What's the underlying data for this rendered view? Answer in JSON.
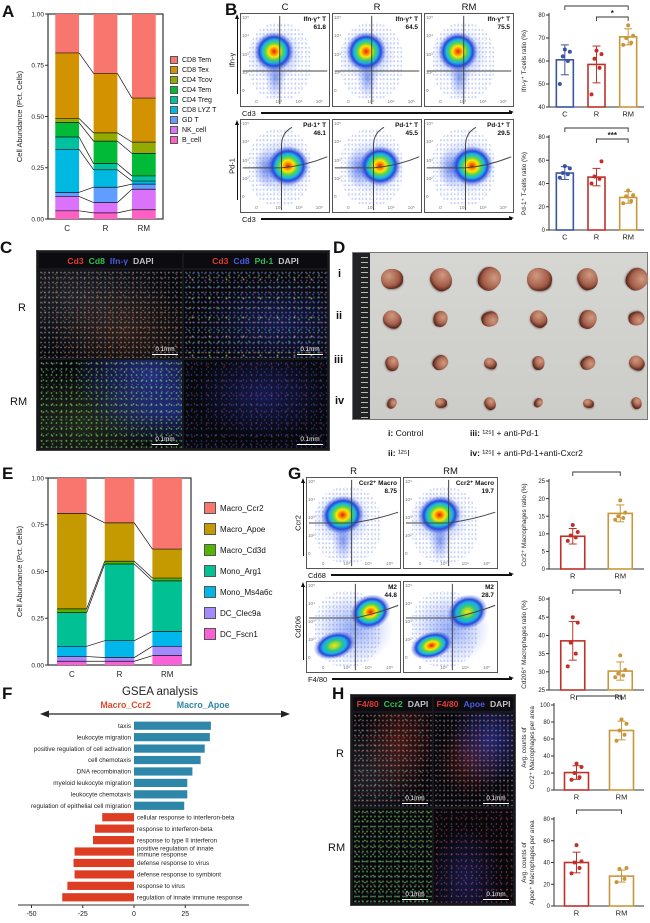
{
  "panelA": {
    "letter": "A"
  },
  "panelB": {
    "letter": "B"
  },
  "panelC": {
    "letter": "C",
    "row_labels": [
      "R",
      "RM"
    ],
    "scalebar": "0.1mm",
    "column_headers": [
      [
        {
          "text": "Cd3",
          "color": "#e23a30"
        },
        {
          "text": "Cd8",
          "color": "#2fbf4f"
        },
        {
          "text": "Ifn-γ",
          "color": "#4b5be0"
        },
        {
          "text": "DAPI",
          "color": "#c2c2c6"
        }
      ],
      [
        {
          "text": "Cd3",
          "color": "#e23a30"
        },
        {
          "text": "Cd8",
          "color": "#4b5be0"
        },
        {
          "text": "Pd-1",
          "color": "#2fbf4f"
        },
        {
          "text": "DAPI",
          "color": "#c2c2c6"
        }
      ]
    ]
  },
  "panelD": {
    "letter": "D",
    "row_labels": [
      "i",
      "ii",
      "iii",
      "iv"
    ],
    "captions": [
      {
        "key": "i:",
        "text": " Control"
      },
      {
        "key": "ii:",
        "text": " ¹²⁵I"
      },
      {
        "key": "iii:",
        "text": " ¹²⁵I + anti-Pd-1"
      },
      {
        "key": "iv:",
        "text": " ¹²⁵I + anti-Pd-1+anti-Cxcr2"
      }
    ]
  },
  "panelE": {
    "letter": "E"
  },
  "panelF": {
    "letter": "F",
    "title": "GSEA analysis",
    "left_header": "Macro_Ccr2",
    "right_header": "Macro_Apoe",
    "left_color": "#E04A2A",
    "right_color": "#2E86A8"
  },
  "panelG": {
    "letter": "G"
  },
  "panelH": {
    "letter": "H",
    "row_labels": [
      "R",
      "RM"
    ],
    "scalebar": "0.1mm",
    "column_headers": [
      [
        {
          "text": "F4/80",
          "color": "#e23a30"
        },
        {
          "text": "Ccr2",
          "color": "#2fbf4f"
        },
        {
          "text": "DAPI",
          "color": "#c2c2c6"
        }
      ],
      [
        {
          "text": "F4/80",
          "color": "#e23a30"
        },
        {
          "text": "Apoe",
          "color": "#4b5be0"
        },
        {
          "text": "DAPI",
          "color": "#c2c2c6"
        }
      ]
    ]
  },
  "flow": {
    "ticks_y": [
      "10⁵",
      "10⁴",
      "10³",
      "10²",
      "0"
    ],
    "ticks_x": [
      "0",
      "10³",
      "10⁴",
      "10⁵"
    ],
    "B": {
      "columns": [
        "C",
        "R",
        "RM"
      ],
      "rows": [
        {
          "ylabel": "Ifn-γ",
          "xlabel": "Cd3",
          "gate": "Ifn-γ⁺ T",
          "values": [
            "61.8",
            "64.5",
            "75.5"
          ],
          "variant": "single"
        },
        {
          "ylabel": "Pd-1",
          "xlabel": "Cd3",
          "gate": "Pd-1⁺ T",
          "values": [
            "46.1",
            "45.5",
            "29.5"
          ],
          "variant": "curve"
        }
      ]
    },
    "G": {
      "columns": [
        "R",
        "RM"
      ],
      "rows": [
        {
          "ylabel": "Ccr2",
          "xlabel": "Cd68",
          "gate": "Ccr2⁺ Macro",
          "values": [
            "8.75",
            "19.7"
          ],
          "variant": "single"
        },
        {
          "ylabel": "Cd206",
          "xlabel": "F4/80",
          "gate": "M2",
          "values": [
            "44.8",
            "28.7"
          ],
          "variant": "diag",
          "hot": [
            "tr",
            "bl"
          ]
        }
      ]
    }
  },
  "chart_data": [
    {
      "id": "A",
      "type": "bar",
      "variant": "stacked",
      "ylabel": "Cell Abundance (Pct. Cells)",
      "categories": [
        "C",
        "R",
        "RM"
      ],
      "yticks": [
        "0.00",
        "0.25",
        "0.50",
        "0.75",
        "1.00"
      ],
      "series": [
        {
          "name": "B_cell",
          "color": "#FF61C3",
          "values": [
            0.04,
            0.03,
            0.045
          ]
        },
        {
          "name": "NK_cell",
          "color": "#DB72FB",
          "values": [
            0.07,
            0.05,
            0.1
          ]
        },
        {
          "name": "GD T",
          "color": "#619CFF",
          "values": [
            0.02,
            0.075,
            0.025
          ]
        },
        {
          "name": "CD8 LYZ T",
          "color": "#00B9E3",
          "values": [
            0.21,
            0.085,
            0.015
          ]
        },
        {
          "name": "CD4 Treg",
          "color": "#00C19F",
          "values": [
            0.06,
            0.03,
            0.025
          ]
        },
        {
          "name": "CD4 Tem",
          "color": "#00BA38",
          "values": [
            0.07,
            0.11,
            0.11
          ]
        },
        {
          "name": "CD4 Tcov",
          "color": "#93AA00",
          "values": [
            0.02,
            0.04,
            0.055
          ]
        },
        {
          "name": "CD8 Tex",
          "color": "#D39200",
          "values": [
            0.32,
            0.29,
            0.215
          ]
        },
        {
          "name": "CD8 Tem",
          "color": "#F8766D",
          "values": [
            0.19,
            0.29,
            0.41
          ]
        }
      ]
    },
    {
      "id": "B1",
      "type": "bar",
      "ylabel": "Ifn-γ⁺ T-cells ratio (%)",
      "categories": [
        "C",
        "R",
        "RM"
      ],
      "values": [
        60.5,
        58.5,
        70.5
      ],
      "err": [
        6.5,
        8,
        3.5
      ],
      "points": [
        [
          50,
          60,
          62,
          64,
          65
        ],
        [
          45.5,
          57,
          61,
          63,
          64.5
        ],
        [
          67,
          68,
          70,
          71,
          75.5
        ]
      ],
      "colors": [
        "#3A53A4",
        "#C03028",
        "#C9973B"
      ],
      "ylim": [
        40,
        80
      ],
      "yticks": [
        40,
        50,
        60,
        70,
        80
      ],
      "sig": [
        {
          "a": 0,
          "b": 2,
          "row": 0,
          "label": "*"
        },
        {
          "a": 1,
          "b": 2,
          "row": 1,
          "label": "*"
        }
      ]
    },
    {
      "id": "B2",
      "type": "bar",
      "ylabel": "Pd-1⁺ T-cells ratio (%)",
      "categories": [
        "C",
        "R",
        "RM"
      ],
      "values": [
        49,
        45.5,
        28
      ],
      "err": [
        5.5,
        7.5,
        5
      ],
      "points": [
        [
          45,
          48,
          49,
          53,
          55
        ],
        [
          40,
          44,
          46,
          59
        ],
        [
          23,
          25,
          29,
          30,
          34
        ]
      ],
      "colors": [
        "#3A53A4",
        "#C03028",
        "#C9973B"
      ],
      "ylim": [
        0,
        80
      ],
      "yticks": [
        0,
        20,
        40,
        60,
        80
      ],
      "sig": [
        {
          "a": 0,
          "b": 2,
          "row": 0,
          "label": "***"
        },
        {
          "a": 1,
          "b": 2,
          "row": 1,
          "label": "***"
        }
      ]
    },
    {
      "id": "E",
      "type": "bar",
      "variant": "stacked",
      "ylabel": "Cell Abundance (Pct. Cells)",
      "categories": [
        "C",
        "R",
        "RM"
      ],
      "yticks": [
        "0.00",
        "0.25",
        "0.50",
        "0.75",
        "1.00"
      ],
      "series": [
        {
          "name": "DC_Fscn1",
          "color": "#FB61D7",
          "values": [
            0.02,
            0.02,
            0.05
          ]
        },
        {
          "name": "DC_Clec9a",
          "color": "#A58AFF",
          "values": [
            0.025,
            0.02,
            0.05
          ]
        },
        {
          "name": "Mono_Ms4a6c",
          "color": "#00B6EB",
          "values": [
            0.055,
            0.09,
            0.08
          ]
        },
        {
          "name": "Mono_Arg1",
          "color": "#00C094",
          "values": [
            0.18,
            0.41,
            0.27
          ]
        },
        {
          "name": "Macro_Cd3d",
          "color": "#53B400",
          "values": [
            0.02,
            0.015,
            0.015
          ]
        },
        {
          "name": "Macro_Apoe",
          "color": "#C49A00",
          "values": [
            0.51,
            0.205,
            0.155
          ]
        },
        {
          "name": "Macro_Ccr2",
          "color": "#F8766D",
          "values": [
            0.19,
            0.24,
            0.38
          ]
        }
      ]
    },
    {
      "id": "F",
      "type": "bar",
      "variant": "diverging",
      "title": "GSEA analysis",
      "xticks": [
        -50,
        -25,
        0,
        25
      ],
      "pos_color": "#2E86A8",
      "neg_color": "#DC3D23",
      "items": [
        {
          "label": "taxis",
          "value": 37.5
        },
        {
          "label": "leukocyte migration",
          "value": 37
        },
        {
          "label": "positive regulation of cell activation",
          "value": 34.5
        },
        {
          "label": "cell chemotaxis",
          "value": 32.5
        },
        {
          "label": "DNA recombination",
          "value": 28.5
        },
        {
          "label": "myeloid leukocyte migration",
          "value": 26
        },
        {
          "label": "leukocyte chemotaxis",
          "value": 26
        },
        {
          "label": "regulation of epithelial cell migration",
          "value": 24.5
        },
        {
          "label": "cellular response to interferon-beta",
          "value": -15.5
        },
        {
          "label": "response to interferon-beta",
          "value": -19
        },
        {
          "label": "response to type II interferon",
          "value": -20
        },
        {
          "label": "positive regulation of innate\nimmune response",
          "value": -29
        },
        {
          "label": "defense response to virus",
          "value": -29.5
        },
        {
          "label": "defense response to symbiont",
          "value": -29
        },
        {
          "label": "response to virus",
          "value": -32.5
        },
        {
          "label": "regulation of innate immune response",
          "value": -35
        }
      ]
    },
    {
      "id": "G1",
      "type": "bar",
      "ylabel": "Ccr2⁺ Macrophages ratio (%)",
      "categories": [
        "R",
        "RM"
      ],
      "values": [
        9.3,
        15.8
      ],
      "err": [
        2.2,
        2.4
      ],
      "points": [
        [
          8,
          9,
          9.5,
          10.5,
          12.5
        ],
        [
          14,
          14.5,
          15,
          16,
          19.5
        ]
      ],
      "colors": [
        "#C03028",
        "#C9973B"
      ],
      "ylim": [
        0,
        25
      ],
      "yticks": [
        0,
        5,
        10,
        15,
        20,
        25
      ],
      "sig": [
        {
          "a": 0,
          "b": 1,
          "row": 0,
          "label": "**"
        }
      ]
    },
    {
      "id": "G2",
      "type": "bar",
      "ylabel": "Cd206⁺ Macrophages ratio (%)",
      "categories": [
        "R",
        "RM"
      ],
      "values": [
        38.5,
        30.2
      ],
      "err": [
        5.3,
        2.5
      ],
      "points": [
        [
          31.5,
          35,
          38,
          43.5,
          45
        ],
        [
          28.5,
          29,
          29.5,
          30.5,
          34.5
        ]
      ],
      "colors": [
        "#C03028",
        "#C9973B"
      ],
      "ylim": [
        25,
        50
      ],
      "yticks": [
        25,
        30,
        35,
        40,
        45,
        50
      ],
      "sig": [
        {
          "a": 0,
          "b": 1,
          "row": 0,
          "label": "*"
        }
      ]
    },
    {
      "id": "H1",
      "type": "bar",
      "ylabel": [
        "Avg. counts of",
        "Ccr2⁺ Macrophages per area"
      ],
      "categories": [
        "R",
        "RM"
      ],
      "values": [
        20.5,
        70
      ],
      "err": [
        8,
        11
      ],
      "points": [
        [
          12,
          15,
          20,
          27,
          31
        ],
        [
          58,
          65,
          70,
          78,
          83
        ]
      ],
      "colors": [
        "#C03028",
        "#C9973B"
      ],
      "ylim": [
        0,
        100
      ],
      "yticks": [
        0,
        20,
        40,
        60,
        80,
        100
      ],
      "sig": [
        {
          "a": 0,
          "b": 1,
          "row": 0,
          "label": "***"
        }
      ]
    },
    {
      "id": "H2",
      "type": "bar",
      "ylabel": [
        "Avg. counts of",
        "Apoe⁺ Macrophages per area"
      ],
      "categories": [
        "R",
        "RM"
      ],
      "values": [
        40,
        27.5
      ],
      "err": [
        9.5,
        5.5
      ],
      "points": [
        [
          30,
          35,
          40,
          41,
          56
        ],
        [
          22,
          25,
          34,
          35
        ]
      ],
      "colors": [
        "#C03028",
        "#C9973B"
      ],
      "ylim": [
        0,
        80
      ],
      "yticks": [
        0,
        20,
        40,
        60,
        80
      ],
      "sig": [
        {
          "a": 0,
          "b": 1,
          "row": 0,
          "label": "*"
        }
      ]
    }
  ]
}
